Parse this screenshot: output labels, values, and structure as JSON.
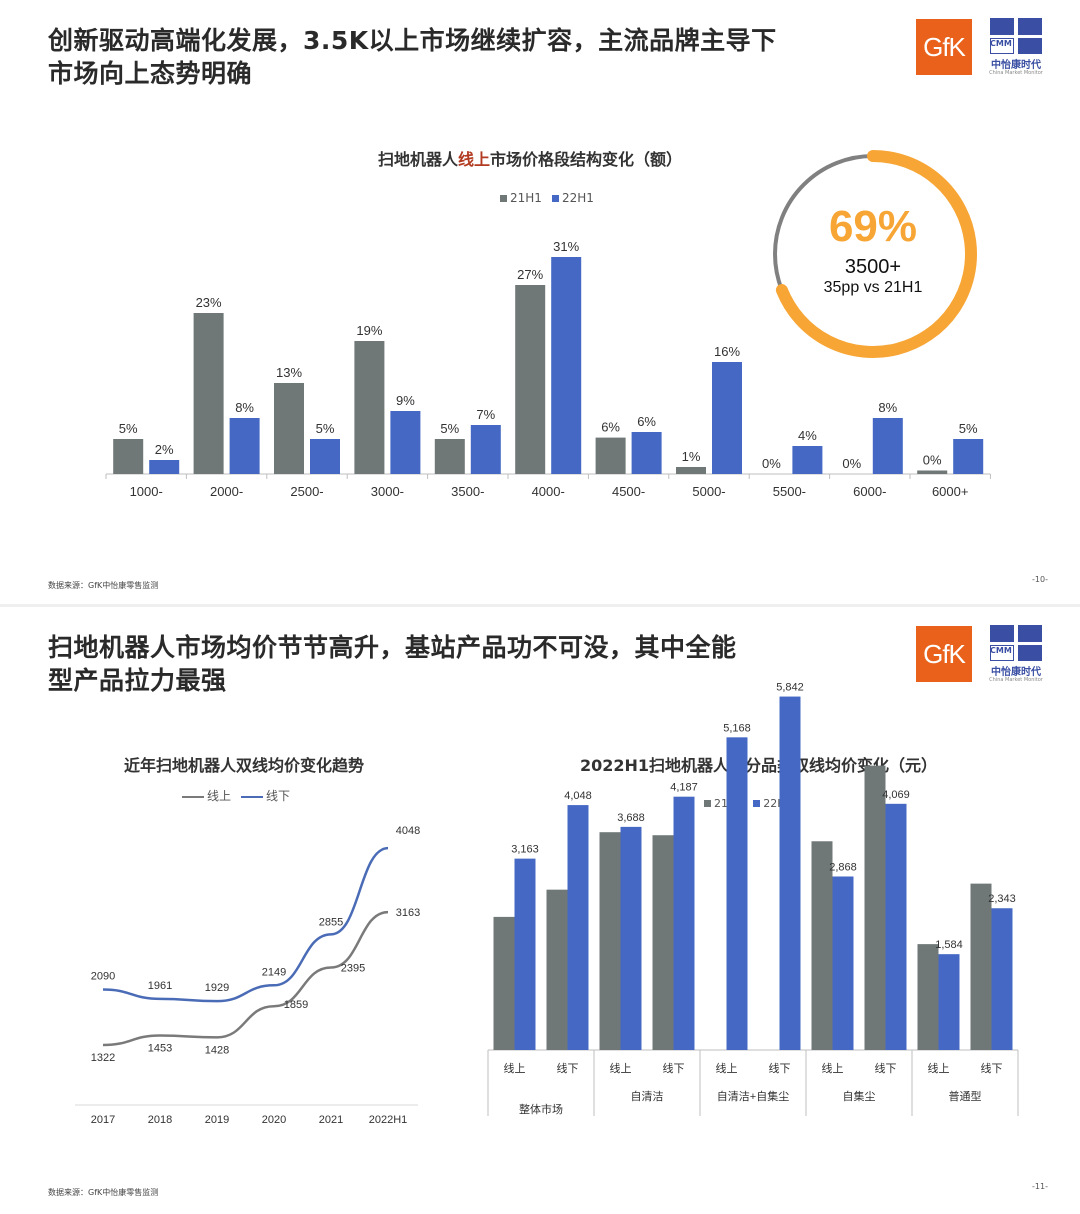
{
  "slide1": {
    "title_lines": [
      "创新驱动高端化发展，3.5K以上市场继续扩容，主流品牌主导下",
      "市场向上态势明确"
    ],
    "logos": {
      "gfk": "GfK",
      "cmm_abbr": "CMM",
      "cmm_name": "中怡康时代",
      "cmm_sub": "China Market Monitor"
    },
    "chart_title_pre": "扫地机器人",
    "chart_title_highlight": "线上",
    "chart_title_post": "市场价格段结构变化（额）",
    "source": "数据来源：GfK中怡康零售监测",
    "page": "-10-",
    "ring": {
      "pct": "69%",
      "label": "3500+",
      "sub": "35pp vs 21H1",
      "fill": 0.69
    }
  },
  "slide2": {
    "title_lines": [
      "扫地机器人市场均价节节高升，基站产品功不可没，其中全能",
      "型产品拉力最强"
    ],
    "logos": {
      "gfk": "GfK",
      "cmm_abbr": "CMM",
      "cmm_name": "中怡康时代",
      "cmm_sub": "China Market Monitor"
    },
    "left_title": "近年扫地机器人双线均价变化趋势",
    "right_title": "2022H1扫地机器人细分品类双线均价变化（元）",
    "source": "数据来源：GfK中怡康零售监测",
    "page": "-11-"
  },
  "colors": {
    "grey": "#6f7777",
    "blue": "#4468c4",
    "orange": "#f7a535",
    "ringBg": "#808080",
    "lineGrey": "#7a7a7a",
    "lineBlue": "#4a6bb5"
  },
  "chart_data": [
    {
      "type": "bar",
      "title": "扫地机器人线上市场价格段结构变化（额）",
      "categories": [
        "1000-",
        "2000-",
        "2500-",
        "3000-",
        "3500-",
        "4000-",
        "4500-",
        "5000-",
        "5500-",
        "6000-",
        "6000+"
      ],
      "series": [
        {
          "name": "21H1",
          "values": [
            5,
            23,
            13,
            19,
            5,
            27,
            6,
            1,
            0,
            0,
            0
          ],
          "labels": [
            "5%",
            "23%",
            "13%",
            "19%",
            "5%",
            "27%",
            "6%",
            "1%",
            "0%",
            "0%",
            "0%"
          ],
          "draw": [
            5,
            23,
            13,
            19,
            5,
            27,
            5.2,
            1,
            0,
            0,
            0.5
          ]
        },
        {
          "name": "22H1",
          "values": [
            2,
            8,
            5,
            9,
            7,
            31,
            6,
            16,
            4,
            8,
            5
          ],
          "labels": [
            "2%",
            "8%",
            "5%",
            "9%",
            "7%",
            "31%",
            "6%",
            "16%",
            "4%",
            "8%",
            "5%"
          ],
          "draw": [
            2,
            8,
            5,
            9,
            7,
            31,
            6,
            16,
            4,
            8,
            5
          ]
        }
      ],
      "legend": "top-center",
      "grid": false
    },
    {
      "type": "line",
      "title": "近年扫地机器人双线均价变化趋势",
      "x": [
        "2017",
        "2018",
        "2019",
        "2020",
        "2021",
        "2022H1"
      ],
      "series": [
        {
          "name": "线上",
          "values": [
            1322,
            1453,
            1428,
            1859,
            2395,
            3163
          ]
        },
        {
          "name": "线下",
          "values": [
            2090,
            1961,
            1929,
            2149,
            2855,
            4048
          ]
        }
      ],
      "legend": "top-center",
      "grid": false
    },
    {
      "type": "bar",
      "title": "2022H1扫地机器人细分品类双线均价变化（元）",
      "groups": [
        {
          "name": "整体市场",
          "subs": [
            "线上",
            "线下"
          ]
        },
        {
          "name": "自清洁",
          "subs": [
            "线上",
            "线下"
          ]
        },
        {
          "name": "自清洁+自集尘",
          "subs": [
            "线上",
            "线下"
          ]
        },
        {
          "name": "自集尘",
          "subs": [
            "线上",
            "线下"
          ]
        },
        {
          "name": "普通型",
          "subs": [
            "线上",
            "线下"
          ]
        }
      ],
      "series": [
        {
          "name": "21H1",
          "values": [
            2200,
            2650,
            3600,
            3550,
            null,
            null,
            3450,
            4700,
            1750,
            2750
          ]
        },
        {
          "name": "22H1",
          "values": [
            3163,
            4048,
            3688,
            4187,
            5168,
            5842,
            2868,
            4069,
            1584,
            2343
          ]
        }
      ],
      "labels": [
        "3,163",
        "4,048",
        "3,688",
        "4,187",
        "5,168",
        "5,842",
        "2,868",
        "4,069",
        "1,584",
        "2,343"
      ],
      "legend": "top-center",
      "grid": false
    }
  ]
}
